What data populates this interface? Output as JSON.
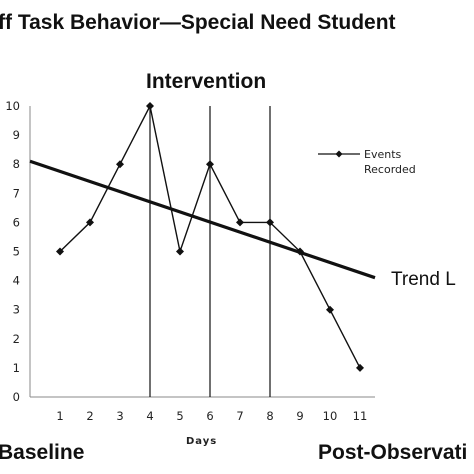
{
  "chart_data": {
    "type": "line",
    "title": "ff Task Behavior—Special Need Student",
    "xlabel": "Days",
    "ylabel": "",
    "categories": [
      1,
      2,
      3,
      4,
      5,
      6,
      7,
      8,
      9,
      10,
      11
    ],
    "xlim": [
      0,
      11.5
    ],
    "ylim": [
      0,
      10
    ],
    "yticks": [
      0,
      1,
      2,
      3,
      4,
      5,
      6,
      7,
      8,
      9,
      10
    ],
    "grid": false,
    "series": [
      {
        "name": "Events Recorded",
        "values": [
          5,
          6,
          8,
          10,
          5,
          8,
          6,
          6,
          5,
          3,
          1
        ]
      }
    ],
    "trend_line": {
      "label": "Trend L",
      "from": [
        0,
        8.1
      ],
      "to": [
        11.5,
        4.1
      ]
    },
    "phase_lines_x": [
      4,
      6,
      8
    ],
    "annotations": {
      "intervention": "Intervention",
      "baseline": "Baseline",
      "post": "Post-Observati"
    },
    "legend": {
      "label_line1": "Events",
      "label_line2": "Recorded",
      "position": "top-right"
    }
  }
}
